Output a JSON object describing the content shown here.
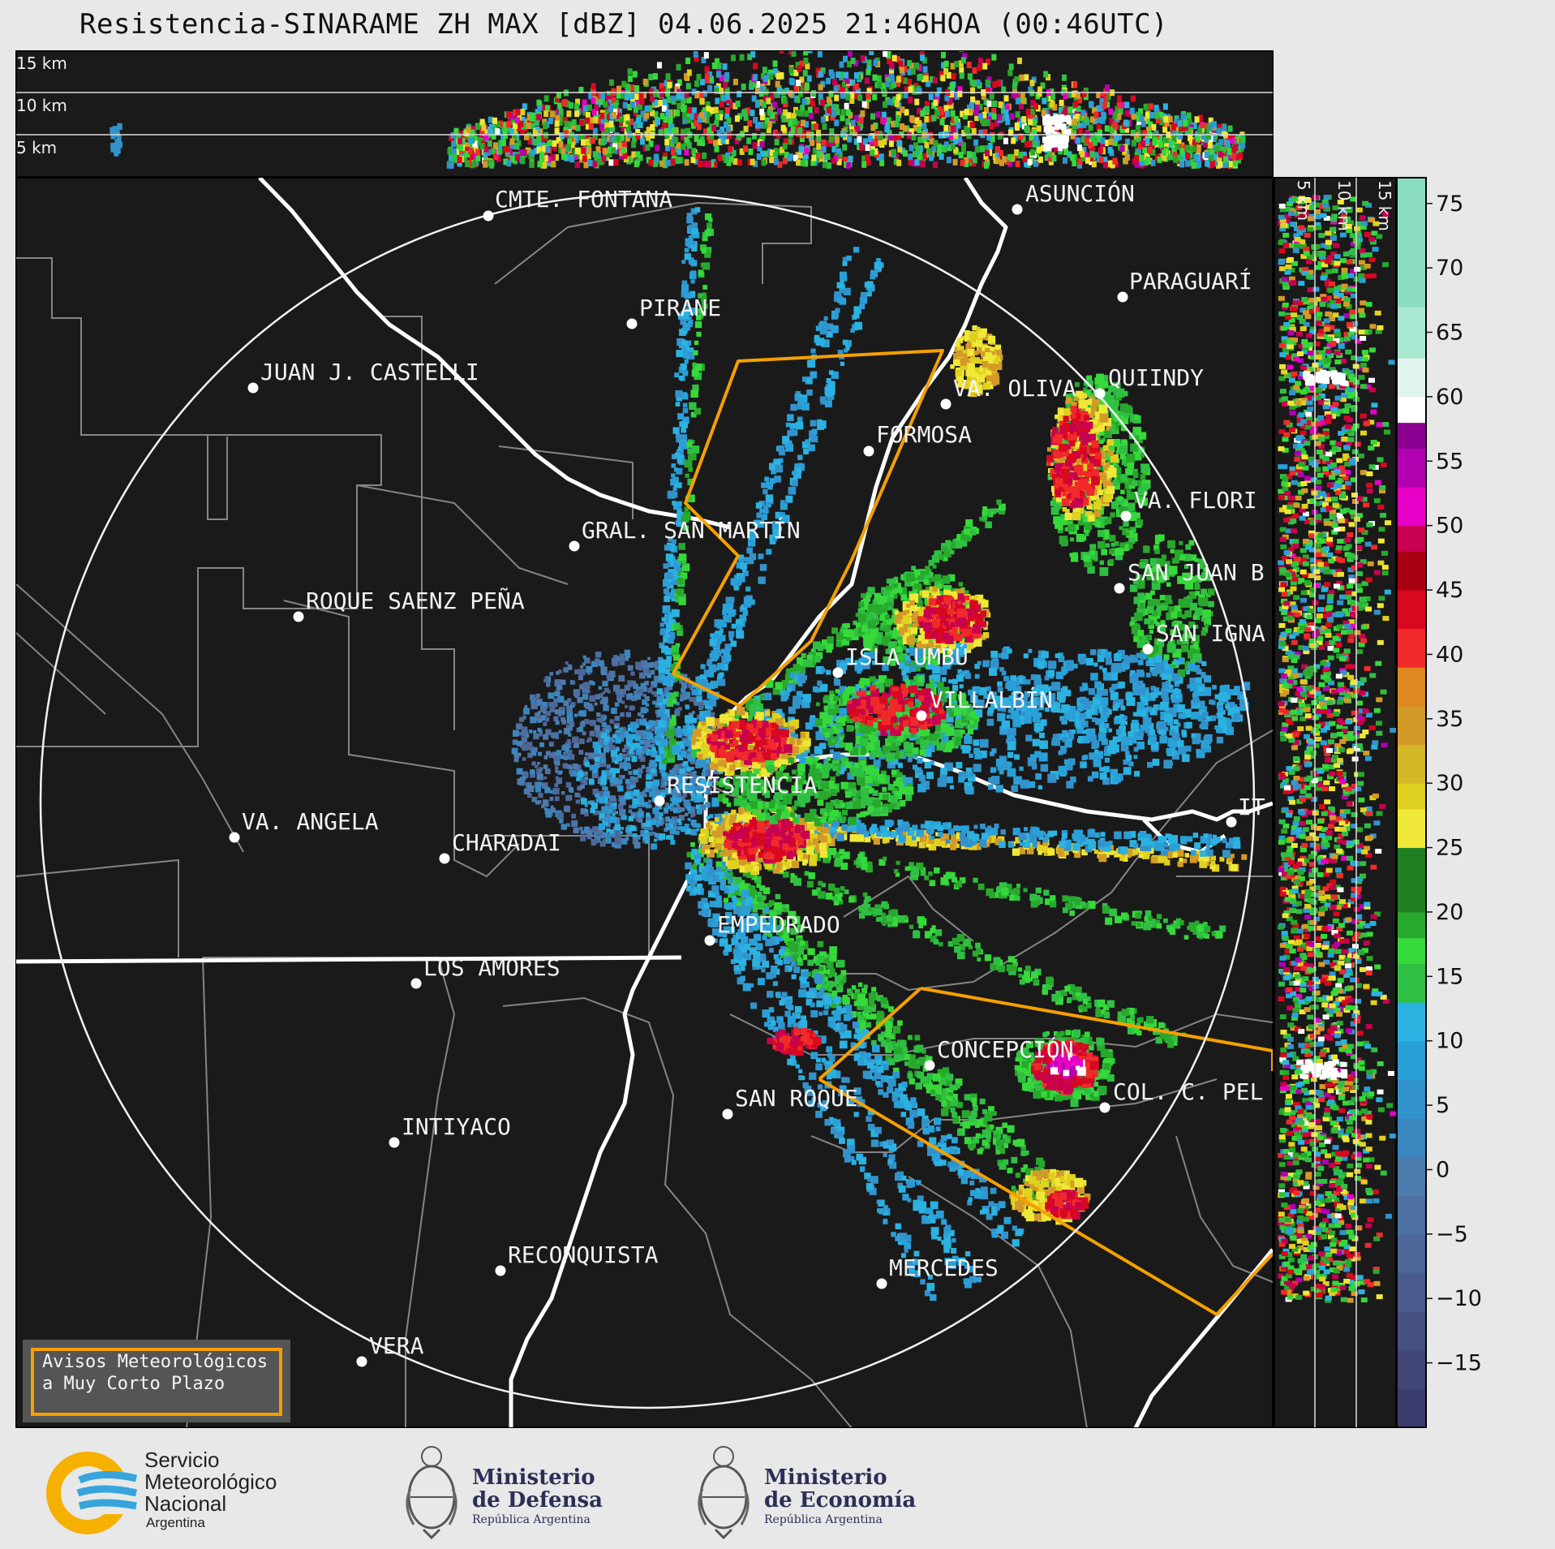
{
  "title": "Resistencia-SINARAME ZH MAX [dBZ] 04.06.2025 21:46HOA (00:46UTC)",
  "top_panel_km": [
    "15 km",
    "10 km",
    "5 km"
  ],
  "side_panel_km": [
    "5 km",
    "10 km",
    "15 km"
  ],
  "colorbar": {
    "ticks": [
      "75",
      "70",
      "65",
      "60",
      "55",
      "50",
      "45",
      "40",
      "35",
      "30",
      "25",
      "20",
      "15",
      "10",
      "5",
      "0",
      "−5",
      "−10",
      "−15"
    ],
    "colors": [
      "#3b3d6e",
      "#414677",
      "#465182",
      "#4a5b8d",
      "#4d6798",
      "#4e71a3",
      "#4c7cae",
      "#3a87bf",
      "#3293cc",
      "#2aa0d8",
      "#2bb2e0",
      "#2fc043",
      "#36d93a",
      "#28a82c",
      "#1f7f23",
      "#f0e838",
      "#e0d020",
      "#d4b828",
      "#d49a28",
      "#e08820",
      "#f02a2a",
      "#d80820",
      "#a80010",
      "#c80050",
      "#e800c8",
      "#b000b0",
      "#8a0090",
      "#ffffff",
      "#e0f4ee",
      "#a8e8d0",
      "#8adcc0"
    ],
    "color_meanings": "dBZ reflectivity scale from low (bottom, dark blue) to high (top, mint)"
  },
  "cities": [
    {
      "name": "CMTE. FONTANA"
    },
    {
      "name": "ASUNCIÓN"
    },
    {
      "name": "PARAGUARÍ"
    },
    {
      "name": "PIRANE"
    },
    {
      "name": "JUAN J. CASTELLI"
    },
    {
      "name": "VA. OLIVA"
    },
    {
      "name": "QUIINDY"
    },
    {
      "name": "FORMOSA"
    },
    {
      "name": "VA. FLORI"
    },
    {
      "name": "GRAL. SAN MARTÍN"
    },
    {
      "name": "SAN JUAN B"
    },
    {
      "name": "ROQUE SAENZ PEÑA"
    },
    {
      "name": "SAN IGNA"
    },
    {
      "name": "ISLA UMBÚ"
    },
    {
      "name": "VILLALBÍN"
    },
    {
      "name": "RESISTENCIA"
    },
    {
      "name": "VA. ANGELA"
    },
    {
      "name": "CHARADAI"
    },
    {
      "name": "IT"
    },
    {
      "name": "EMPEDRADO"
    },
    {
      "name": "LOS AMORES"
    },
    {
      "name": "CONCEPCIÓN"
    },
    {
      "name": "COL. C. PEL"
    },
    {
      "name": "SAN ROQUE"
    },
    {
      "name": "INTIYACO"
    },
    {
      "name": "RECONQUISTA"
    },
    {
      "name": "MERCEDES"
    },
    {
      "name": "VERA"
    }
  ],
  "legend": {
    "line1": "Avisos Meteorológicos",
    "line2": "a Muy Corto Plazo",
    "border_color": "#f5a000"
  },
  "logos": {
    "smn": {
      "line1": "Servicio",
      "line2": "Meteorológico",
      "line3": "Nacional",
      "line4": "Argentina"
    },
    "defensa": {
      "line1": "Ministerio",
      "line2": "de Defensa",
      "line3": "República Argentina"
    },
    "economia": {
      "line1": "Ministerio",
      "line2": "de Economía",
      "line3": "República Argentina"
    }
  },
  "colors": {
    "map_background": "#1a1a1a",
    "page_background": "#e8e8e8",
    "warning_polygon": "#f5a000",
    "borders": "#888888",
    "rivers": "#ffffff"
  }
}
